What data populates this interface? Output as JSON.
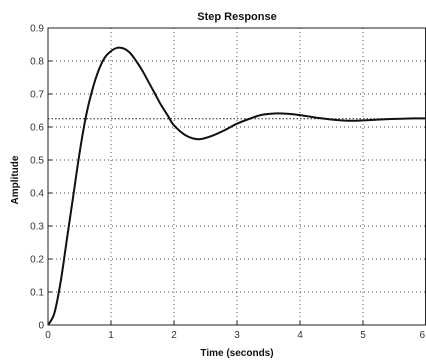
{
  "chart_data": {
    "type": "line",
    "title": "Step Response",
    "xlabel": "Time (seconds)",
    "ylabel": "Amplitude",
    "xlim": [
      0,
      6
    ],
    "ylim": [
      0,
      0.9
    ],
    "xticks": [
      "0",
      "1",
      "2",
      "3",
      "4",
      "5",
      "6"
    ],
    "yticks": [
      "0",
      "0.1",
      "0.2",
      "0.3",
      "0.4",
      "0.5",
      "0.6",
      "0.7",
      "0.8",
      "0.9"
    ],
    "grid": true,
    "reference_line": {
      "y": 0.625,
      "style": "dotted"
    },
    "series": [
      {
        "color": "#111111",
        "x": [
          0,
          0.1,
          0.2,
          0.3,
          0.4,
          0.5,
          0.6,
          0.7,
          0.8,
          0.9,
          1.0,
          1.1,
          1.2,
          1.3,
          1.4,
          1.5,
          1.6,
          1.7,
          1.8,
          1.9,
          2.0,
          2.2,
          2.4,
          2.6,
          2.8,
          3.0,
          3.2,
          3.4,
          3.6,
          3.8,
          4.0,
          4.2,
          4.4,
          4.6,
          4.8,
          5.0,
          5.2,
          5.4,
          5.6,
          5.8,
          6.0
        ],
        "y": [
          0,
          0.035,
          0.13,
          0.26,
          0.39,
          0.52,
          0.63,
          0.71,
          0.77,
          0.81,
          0.83,
          0.84,
          0.838,
          0.825,
          0.8,
          0.77,
          0.735,
          0.7,
          0.665,
          0.635,
          0.605,
          0.573,
          0.563,
          0.573,
          0.59,
          0.61,
          0.625,
          0.637,
          0.641,
          0.64,
          0.636,
          0.63,
          0.625,
          0.621,
          0.619,
          0.62,
          0.622,
          0.624,
          0.625,
          0.626,
          0.626
        ]
      }
    ]
  }
}
